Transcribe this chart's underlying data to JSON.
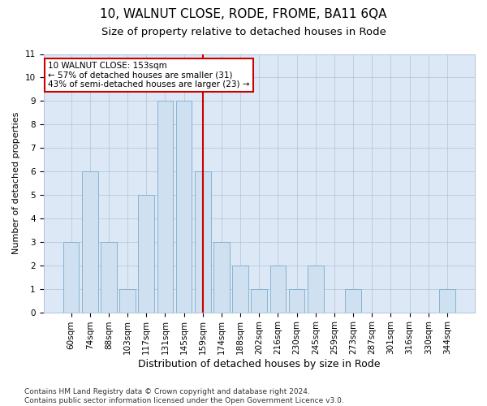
{
  "title1": "10, WALNUT CLOSE, RODE, FROME, BA11 6QA",
  "title2": "Size of property relative to detached houses in Rode",
  "xlabel": "Distribution of detached houses by size in Rode",
  "ylabel": "Number of detached properties",
  "categories": [
    "60sqm",
    "74sqm",
    "88sqm",
    "103sqm",
    "117sqm",
    "131sqm",
    "145sqm",
    "159sqm",
    "174sqm",
    "188sqm",
    "202sqm",
    "216sqm",
    "230sqm",
    "245sqm",
    "259sqm",
    "273sqm",
    "287sqm",
    "301sqm",
    "316sqm",
    "330sqm",
    "344sqm"
  ],
  "values": [
    3,
    6,
    3,
    1,
    5,
    9,
    9,
    6,
    3,
    2,
    1,
    2,
    1,
    2,
    0,
    1,
    0,
    0,
    0,
    0,
    1
  ],
  "bar_color": "#cfe0f0",
  "bar_edgecolor": "#7aadce",
  "highlight_index": 7,
  "highlight_line_color": "#cc0000",
  "ylim": [
    0,
    11
  ],
  "yticks": [
    0,
    1,
    2,
    3,
    4,
    5,
    6,
    7,
    8,
    9,
    10,
    11
  ],
  "grid_color": "#b0c4d8",
  "background_color": "#ffffff",
  "ax_background": "#dce8f5",
  "annotation_text": "10 WALNUT CLOSE: 153sqm\n← 57% of detached houses are smaller (31)\n43% of semi-detached houses are larger (23) →",
  "annotation_box_color": "#ffffff",
  "annotation_box_edgecolor": "#cc0000",
  "footer": "Contains HM Land Registry data © Crown copyright and database right 2024.\nContains public sector information licensed under the Open Government Licence v3.0.",
  "title1_fontsize": 11,
  "title2_fontsize": 9.5,
  "xlabel_fontsize": 9,
  "ylabel_fontsize": 8,
  "tick_fontsize": 7.5,
  "annotation_fontsize": 7.5,
  "footer_fontsize": 6.5
}
